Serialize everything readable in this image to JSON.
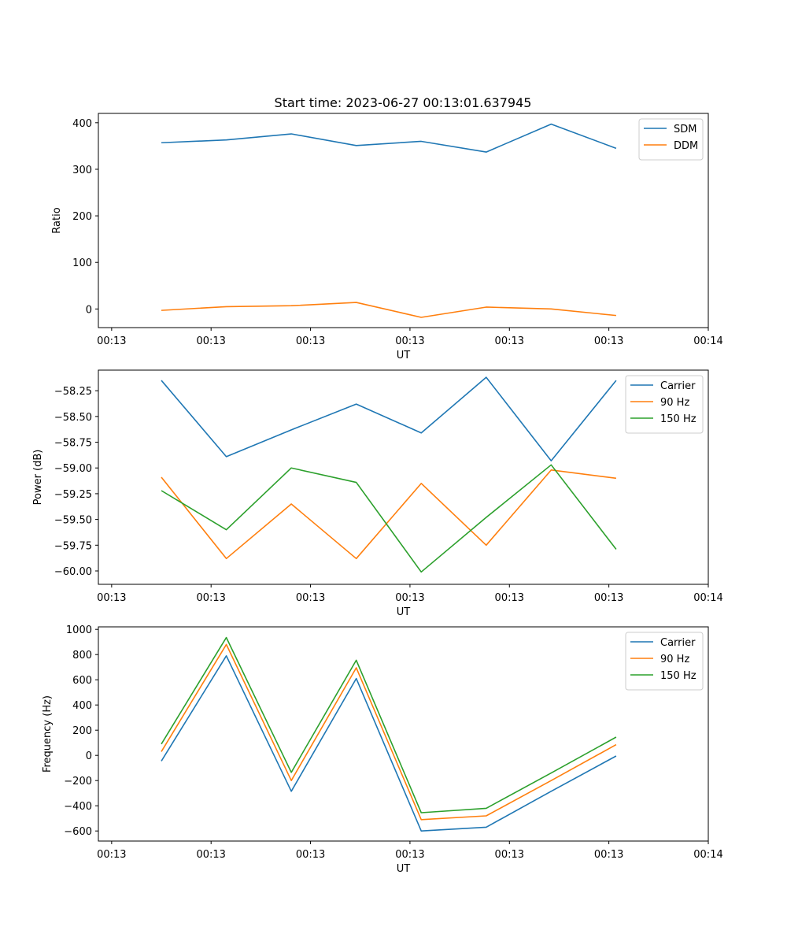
{
  "figure": {
    "title": "Start time: 2023-06-27 00:13:01.637945"
  },
  "chart_data": [
    {
      "type": "line",
      "title": "Start time: 2023-06-27 00:13:01.637945",
      "xlabel": "UT",
      "ylabel": "Ratio",
      "x_tick_labels": [
        "00:13",
        "00:13",
        "00:13",
        "00:13",
        "00:13",
        "00:13",
        "00:14"
      ],
      "x_ticks": [
        0,
        1.5,
        3,
        4.5,
        6,
        7.5,
        9
      ],
      "xlim": [
        -0.2,
        9.0
      ],
      "x": [
        0.75,
        1.73,
        2.71,
        3.69,
        4.67,
        5.65,
        6.63,
        7.61
      ],
      "ylim": [
        -40,
        420
      ],
      "y_ticks": [
        0,
        100,
        200,
        300,
        400
      ],
      "y_tick_labels": [
        "0",
        "100",
        "200",
        "300",
        "400"
      ],
      "legend": "top-right",
      "series": [
        {
          "name": "SDM",
          "color": "#1f77b4",
          "values": [
            357,
            363,
            376,
            351,
            360,
            337,
            397,
            345
          ]
        },
        {
          "name": "DDM",
          "color": "#ff7f0e",
          "values": [
            -3,
            5,
            7,
            14,
            -18,
            4,
            0,
            -14
          ]
        }
      ]
    },
    {
      "type": "line",
      "xlabel": "UT",
      "ylabel": "Power (dB)",
      "x_tick_labels": [
        "00:13",
        "00:13",
        "00:13",
        "00:13",
        "00:13",
        "00:13",
        "00:14"
      ],
      "x_ticks": [
        0,
        1.5,
        3,
        4.5,
        6,
        7.5,
        9
      ],
      "xlim": [
        -0.2,
        9.0
      ],
      "x": [
        0.75,
        1.73,
        2.71,
        3.69,
        4.67,
        5.65,
        6.63,
        7.61
      ],
      "ylim": [
        -60.13,
        -58.05
      ],
      "y_ticks": [
        -60.0,
        -59.75,
        -59.5,
        -59.25,
        -59.0,
        -58.75,
        -58.5,
        -58.25
      ],
      "y_tick_labels": [
        "−60.00",
        "−59.75",
        "−59.50",
        "−59.25",
        "−59.00",
        "−58.75",
        "−58.50",
        "−58.25"
      ],
      "legend": "top-right",
      "series": [
        {
          "name": "Carrier",
          "color": "#1f77b4",
          "values": [
            -58.15,
            -58.89,
            -58.63,
            -58.38,
            -58.66,
            -58.12,
            -58.93,
            -58.15
          ]
        },
        {
          "name": "90 Hz",
          "color": "#ff7f0e",
          "values": [
            -59.09,
            -59.88,
            -59.35,
            -59.88,
            -59.15,
            -59.75,
            -59.02,
            -59.1
          ]
        },
        {
          "name": "150 Hz",
          "color": "#2ca02c",
          "values": [
            -59.22,
            -59.6,
            -59.0,
            -59.14,
            -60.01,
            -59.48,
            -58.97,
            -59.79
          ]
        }
      ]
    },
    {
      "type": "line",
      "xlabel": "UT",
      "ylabel": "Frequency (Hz)",
      "x_tick_labels": [
        "00:13",
        "00:13",
        "00:13",
        "00:13",
        "00:13",
        "00:13",
        "00:14"
      ],
      "x_ticks": [
        0,
        1.5,
        3,
        4.5,
        6,
        7.5,
        9
      ],
      "xlim": [
        -0.2,
        9.0
      ],
      "x": [
        0.75,
        1.73,
        2.71,
        3.69,
        4.67,
        5.65,
        6.63,
        7.61
      ],
      "ylim": [
        -680,
        1020
      ],
      "y_ticks": [
        -600,
        -400,
        -200,
        0,
        200,
        400,
        600,
        800,
        1000
      ],
      "y_tick_labels": [
        "−600",
        "−400",
        "−200",
        "0",
        "200",
        "400",
        "600",
        "800",
        "1000"
      ],
      "legend": "top-right",
      "series": [
        {
          "name": "Carrier",
          "color": "#1f77b4",
          "values": [
            -45,
            790,
            -285,
            610,
            -600,
            -570,
            -285,
            -5
          ]
        },
        {
          "name": "90 Hz",
          "color": "#ff7f0e",
          "values": [
            30,
            880,
            -200,
            695,
            -510,
            -480,
            -200,
            85
          ]
        },
        {
          "name": "150 Hz",
          "color": "#2ca02c",
          "values": [
            90,
            935,
            -135,
            755,
            -455,
            -420,
            -140,
            145
          ]
        }
      ]
    }
  ]
}
